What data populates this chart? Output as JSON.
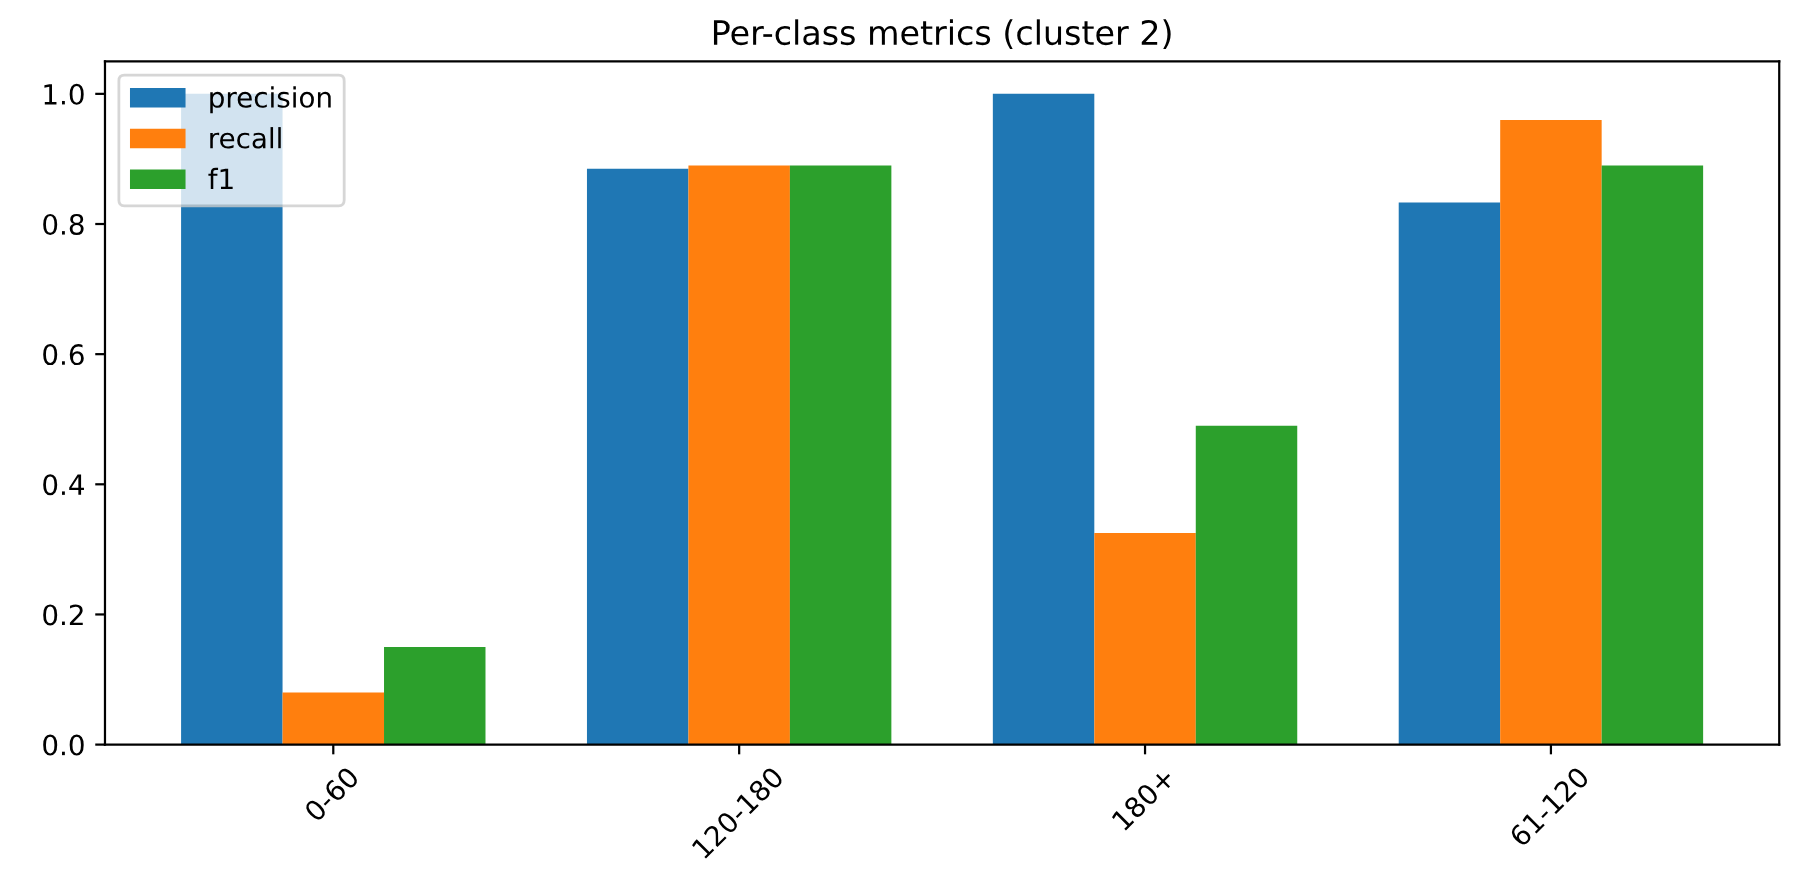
{
  "chart_data": {
    "type": "bar",
    "title": "Per-class metrics (cluster 2)",
    "categories": [
      "0-60",
      "120-180",
      "180+",
      "61-120"
    ],
    "series": [
      {
        "name": "precision",
        "color": "#1f77b4",
        "values": [
          1.0,
          0.885,
          1.0,
          0.833
        ]
      },
      {
        "name": "recall",
        "color": "#ff7f0e",
        "values": [
          0.08,
          0.89,
          0.325,
          0.96
        ]
      },
      {
        "name": "f1",
        "color": "#2ca02c",
        "values": [
          0.15,
          0.89,
          0.49,
          0.89
        ]
      }
    ],
    "ylim": [
      0,
      1.05
    ],
    "yticks": [
      {
        "value": 0,
        "label": "0.0"
      },
      {
        "value": 0.2,
        "label": "0.2"
      },
      {
        "value": 0.4,
        "label": "0.4"
      },
      {
        "value": 0.6,
        "label": "0.6"
      },
      {
        "value": 0.8,
        "label": "0.8"
      },
      {
        "value": 1.0,
        "label": "1.0"
      }
    ],
    "legend": "top left",
    "grid": false
  }
}
